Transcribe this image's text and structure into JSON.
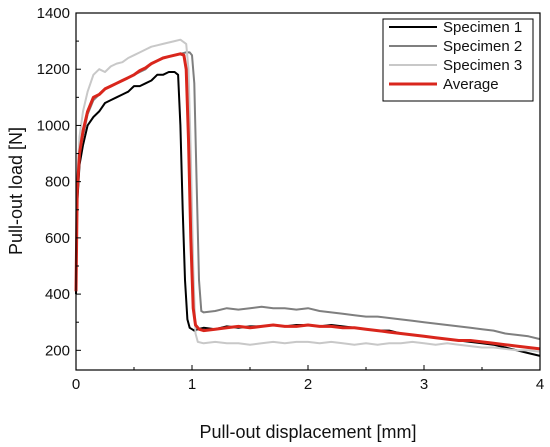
{
  "chart_data": {
    "type": "line",
    "title": "",
    "xlabel": "Pull-out displacement [mm]",
    "ylabel": "Pull-out load [N]",
    "xlim": [
      0,
      4
    ],
    "ylim": [
      130,
      1400
    ],
    "x_ticks": [
      "0",
      "1",
      "2",
      "3",
      "4"
    ],
    "y_ticks": [
      "200",
      "400",
      "600",
      "800",
      "1000",
      "1200",
      "1400"
    ],
    "y_tick_values": [
      200,
      400,
      600,
      800,
      1000,
      1200,
      1400
    ],
    "x_tick_values": [
      0,
      1,
      2,
      3,
      4
    ],
    "grid": false,
    "legend_position": "top-right",
    "series": [
      {
        "name": "Specimen 1",
        "color": "#000000",
        "x": [
          0,
          0.01,
          0.03,
          0.06,
          0.1,
          0.15,
          0.2,
          0.25,
          0.3,
          0.35,
          0.4,
          0.45,
          0.5,
          0.55,
          0.6,
          0.65,
          0.7,
          0.75,
          0.8,
          0.85,
          0.88,
          0.9,
          0.92,
          0.94,
          0.96,
          0.98,
          1.0,
          1.02,
          1.05,
          1.1,
          1.2,
          1.3,
          1.4,
          1.5,
          1.6,
          1.7,
          1.8,
          1.9,
          2.0,
          2.1,
          2.2,
          2.3,
          2.4,
          2.5,
          2.6,
          2.7,
          2.8,
          2.9,
          3.0,
          3.1,
          3.2,
          3.3,
          3.4,
          3.5,
          3.6,
          3.7,
          3.8,
          3.9,
          4.0
        ],
        "y": [
          400,
          720,
          860,
          930,
          1000,
          1030,
          1050,
          1080,
          1090,
          1100,
          1110,
          1120,
          1140,
          1140,
          1150,
          1160,
          1180,
          1180,
          1190,
          1190,
          1180,
          1000,
          700,
          450,
          310,
          280,
          275,
          270,
          275,
          280,
          275,
          285,
          280,
          285,
          285,
          290,
          285,
          290,
          290,
          285,
          290,
          285,
          280,
          275,
          270,
          270,
          260,
          255,
          250,
          245,
          240,
          235,
          230,
          225,
          220,
          210,
          200,
          190,
          180
        ]
      },
      {
        "name": "Specimen 2",
        "color": "#7f7f7f",
        "x": [
          0,
          0.01,
          0.03,
          0.06,
          0.1,
          0.15,
          0.2,
          0.25,
          0.3,
          0.35,
          0.4,
          0.45,
          0.5,
          0.55,
          0.6,
          0.65,
          0.7,
          0.75,
          0.8,
          0.85,
          0.9,
          0.95,
          0.98,
          1.0,
          1.02,
          1.04,
          1.06,
          1.08,
          1.1,
          1.2,
          1.3,
          1.4,
          1.5,
          1.6,
          1.7,
          1.8,
          1.9,
          2.0,
          2.1,
          2.2,
          2.3,
          2.4,
          2.5,
          2.6,
          2.7,
          2.8,
          2.9,
          3.0,
          3.1,
          3.2,
          3.3,
          3.4,
          3.5,
          3.6,
          3.7,
          3.8,
          3.9,
          4.0
        ],
        "y": [
          420,
          760,
          900,
          960,
          1040,
          1090,
          1110,
          1130,
          1140,
          1150,
          1160,
          1170,
          1180,
          1190,
          1200,
          1220,
          1230,
          1240,
          1245,
          1250,
          1255,
          1260,
          1260,
          1250,
          1150,
          800,
          450,
          340,
          335,
          340,
          350,
          345,
          350,
          355,
          350,
          350,
          345,
          350,
          340,
          335,
          330,
          325,
          320,
          320,
          315,
          310,
          305,
          300,
          295,
          290,
          285,
          280,
          275,
          270,
          260,
          255,
          250,
          240
        ]
      },
      {
        "name": "Specimen 3",
        "color": "#c8c8c8",
        "x": [
          0,
          0.01,
          0.03,
          0.06,
          0.1,
          0.15,
          0.2,
          0.25,
          0.3,
          0.35,
          0.4,
          0.45,
          0.5,
          0.55,
          0.6,
          0.65,
          0.7,
          0.75,
          0.8,
          0.85,
          0.9,
          0.95,
          0.97,
          0.99,
          1.01,
          1.03,
          1.05,
          1.1,
          1.2,
          1.3,
          1.4,
          1.5,
          1.6,
          1.7,
          1.8,
          1.9,
          2.0,
          2.1,
          2.2,
          2.3,
          2.4,
          2.5,
          2.6,
          2.7,
          2.8,
          2.9,
          3.0,
          3.1,
          3.2,
          3.3,
          3.4,
          3.5,
          3.6,
          3.7,
          3.8,
          3.9,
          4.0
        ],
        "y": [
          430,
          800,
          960,
          1050,
          1120,
          1180,
          1200,
          1190,
          1210,
          1220,
          1225,
          1240,
          1250,
          1260,
          1270,
          1280,
          1285,
          1290,
          1295,
          1300,
          1305,
          1290,
          1200,
          900,
          500,
          260,
          230,
          225,
          230,
          225,
          225,
          220,
          225,
          230,
          225,
          230,
          230,
          225,
          230,
          225,
          220,
          225,
          220,
          225,
          225,
          230,
          225,
          220,
          225,
          220,
          215,
          210,
          210,
          205,
          200,
          200,
          195
        ]
      },
      {
        "name": "Average",
        "color": "#d9261c",
        "x": [
          0,
          0.01,
          0.03,
          0.06,
          0.1,
          0.15,
          0.2,
          0.25,
          0.3,
          0.35,
          0.4,
          0.45,
          0.5,
          0.55,
          0.6,
          0.65,
          0.7,
          0.75,
          0.8,
          0.85,
          0.9,
          0.93,
          0.95,
          0.97,
          0.99,
          1.01,
          1.03,
          1.06,
          1.1,
          1.2,
          1.3,
          1.4,
          1.5,
          1.6,
          1.7,
          1.8,
          1.9,
          2.0,
          2.1,
          2.2,
          2.3,
          2.4,
          2.5,
          2.6,
          2.7,
          2.8,
          2.9,
          3.0,
          3.1,
          3.2,
          3.3,
          3.4,
          3.5,
          3.6,
          3.7,
          3.8,
          3.9,
          4.0
        ],
        "y": [
          410,
          760,
          900,
          980,
          1050,
          1100,
          1110,
          1130,
          1140,
          1150,
          1160,
          1170,
          1180,
          1195,
          1205,
          1220,
          1230,
          1240,
          1245,
          1250,
          1255,
          1250,
          1200,
          950,
          600,
          350,
          290,
          275,
          270,
          275,
          280,
          285,
          280,
          285,
          290,
          285,
          285,
          290,
          285,
          285,
          280,
          280,
          275,
          270,
          265,
          260,
          255,
          250,
          245,
          240,
          235,
          235,
          230,
          225,
          220,
          215,
          210,
          205
        ]
      }
    ]
  }
}
